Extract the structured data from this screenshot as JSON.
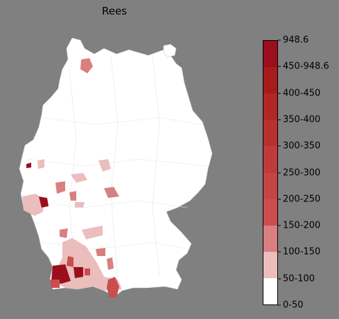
{
  "map": {
    "title": "Rees",
    "background_color": "#808080",
    "land_color": "#ffffff"
  },
  "legend": {
    "ticks": [
      "0-50",
      "50-100",
      "100-150",
      "150-200",
      "200-250",
      "250-300",
      "300-350",
      "350-400",
      "400-450",
      "450-948.6",
      "948.6"
    ],
    "colors": [
      "#ffffff",
      "#ebbdbd",
      "#d97f7f",
      "#cb4d4d",
      "#c54545",
      "#bf3a3a",
      "#b83030",
      "#b12626",
      "#a61c1c",
      "#9a0e1e"
    ]
  },
  "highlight_colors": {
    "light": "#ebbdbd",
    "medium": "#d97f7f",
    "strong": "#cb4d4d",
    "dark": "#9a0e1e"
  }
}
